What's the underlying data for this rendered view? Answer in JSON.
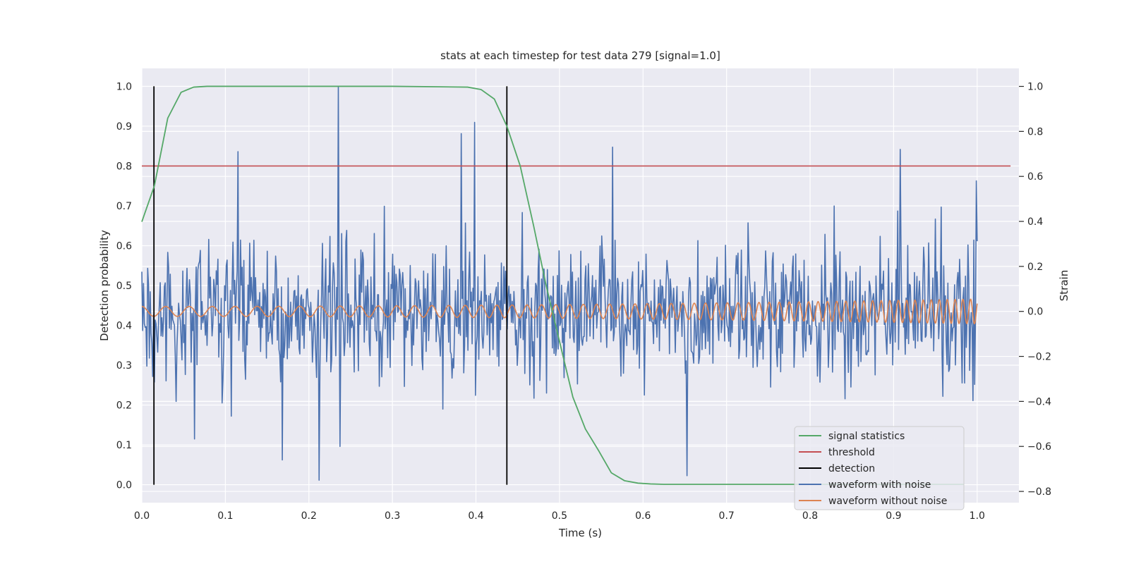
{
  "chart_data": {
    "type": "line",
    "title": "stats at each timestep for test data 279 [signal=1.0]",
    "xlabel": "Time (s)",
    "ylabel_left": "Detection probability",
    "ylabel_right": "Strain",
    "xlim": [
      0.0,
      1.05
    ],
    "ylim_left": [
      -0.045,
      1.045
    ],
    "ylim_right": [
      -0.85,
      1.08
    ],
    "x_ticks": [
      "0.0",
      "0.1",
      "0.2",
      "0.3",
      "0.4",
      "0.5",
      "0.6",
      "0.7",
      "0.8",
      "0.9",
      "1.0"
    ],
    "y_left_ticks": [
      "0.0",
      "0.1",
      "0.2",
      "0.3",
      "0.4",
      "0.5",
      "0.6",
      "0.7",
      "0.8",
      "0.9",
      "1.0"
    ],
    "y_right_ticks": [
      "−0.8",
      "−0.6",
      "−0.4",
      "−0.2",
      "0.0",
      "0.2",
      "0.4",
      "0.6",
      "0.8",
      "1.0"
    ],
    "grid": true,
    "legend_position": "lower-right",
    "colors": {
      "background": "#eaeaf2",
      "grid": "#ffffff",
      "signal_statistics": "#55a868",
      "threshold": "#c44e52",
      "detection": "#000000",
      "waveform_with_noise": "#4c72b0",
      "waveform_without_noise": "#dd8452"
    },
    "legend": [
      {
        "name": "signal statistics",
        "color": "#55a868"
      },
      {
        "name": "threshold",
        "color": "#c44e52"
      },
      {
        "name": "detection",
        "color": "#000000"
      },
      {
        "name": "waveform with noise",
        "color": "#4c72b0"
      },
      {
        "name": "waveform without noise",
        "color": "#dd8452"
      }
    ],
    "series": [
      {
        "name": "signal statistics",
        "axis": "left",
        "x": [
          0.0,
          0.015,
          0.031,
          0.047,
          0.062,
          0.078,
          0.1,
          0.2,
          0.3,
          0.39,
          0.406,
          0.422,
          0.437,
          0.453,
          0.469,
          0.484,
          0.5,
          0.516,
          0.531,
          0.547,
          0.562,
          0.578,
          0.594,
          0.609,
          0.625,
          0.7,
          0.8,
          0.9,
          0.984
        ],
        "y": [
          0.66,
          0.75,
          0.92,
          0.985,
          0.998,
          1.0,
          1.0,
          1.0,
          1.0,
          0.998,
          0.992,
          0.968,
          0.9,
          0.8,
          0.65,
          0.5,
          0.36,
          0.22,
          0.14,
          0.085,
          0.03,
          0.01,
          0.004,
          0.002,
          0.001,
          0.001,
          0.001,
          0.001,
          0.001
        ]
      },
      {
        "name": "threshold",
        "axis": "left",
        "x": [
          0.0,
          1.04
        ],
        "y": [
          0.8,
          0.8
        ]
      },
      {
        "name": "detection",
        "axis": "left",
        "type": "vlines",
        "x": [
          0.0145,
          0.437
        ],
        "ymin": 0.0,
        "ymax": 1.0
      },
      {
        "name": "waveform with noise",
        "axis": "right",
        "type": "noise",
        "x_range": [
          0.0,
          1.0
        ],
        "n_points": 1000,
        "std": 0.155,
        "spikes": [
          {
            "x": 0.235,
            "y": 1.0
          },
          {
            "x": 0.398,
            "y": 0.84
          },
          {
            "x": 0.382,
            "y": 0.79
          },
          {
            "x": 0.115,
            "y": 0.71
          },
          {
            "x": 0.564,
            "y": 0.73
          },
          {
            "x": 0.908,
            "y": 0.72
          },
          {
            "x": 0.212,
            "y": -0.75
          },
          {
            "x": 0.653,
            "y": -0.73
          },
          {
            "x": 0.168,
            "y": -0.66
          },
          {
            "x": 0.237,
            "y": -0.6
          }
        ]
      },
      {
        "name": "waveform without noise",
        "axis": "right",
        "type": "chirp",
        "x_range": [
          0.0,
          1.0
        ],
        "amp_start": 0.022,
        "amp_end": 0.055,
        "freq_start": 35,
        "freq_end": 110
      }
    ]
  }
}
